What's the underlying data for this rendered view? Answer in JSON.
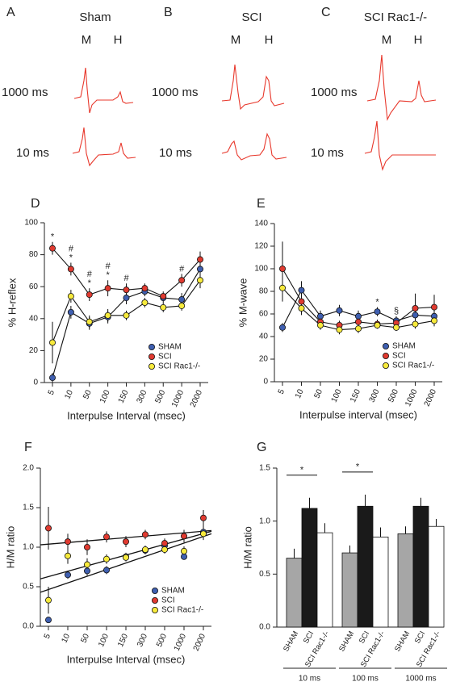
{
  "traces": {
    "panels": [
      {
        "letter": "A",
        "title": "Sham",
        "m": "M",
        "h": "H",
        "row_labels": [
          "1000 ms",
          "10 ms"
        ]
      },
      {
        "letter": "B",
        "title": "SCI",
        "m": "M",
        "h": "H",
        "row_labels": [
          "1000 ms",
          "10 ms"
        ]
      },
      {
        "letter": "C",
        "title": "SCI Rac1-/-",
        "m": "M",
        "h": "H",
        "row_labels": [
          "1000 ms",
          "10 ms"
        ]
      }
    ]
  },
  "chart_data": [
    {
      "type": "line",
      "panel_label": "D",
      "xlabel": "Interpulse Interval (msec)",
      "ylabel": "% H-reflex",
      "categories": [
        "5",
        "10",
        "50",
        "100",
        "150",
        "300",
        "500",
        "1000",
        "2000"
      ],
      "ylim": [
        0,
        100
      ],
      "yticks": [
        0,
        20,
        40,
        60,
        80,
        100
      ],
      "legend": "lower right",
      "series": [
        {
          "name": "SHAM",
          "color": "#3f5fb0",
          "values": [
            3,
            44,
            37,
            41,
            53,
            57,
            53,
            52,
            71
          ],
          "errors": [
            3,
            4,
            4,
            4,
            4,
            3,
            3,
            4,
            5
          ]
        },
        {
          "name": "SCI",
          "color": "#e03a30",
          "values": [
            84,
            71,
            55,
            59,
            58,
            59,
            54,
            64,
            77
          ],
          "errors": [
            4,
            4,
            4,
            5,
            4,
            3,
            3,
            4,
            5
          ]
        },
        {
          "name": "SCI Rac1-/-",
          "color": "#f7ea3c",
          "values": [
            25,
            54,
            38,
            42,
            42,
            50,
            47,
            48,
            64
          ],
          "errors": [
            13,
            4,
            4,
            4,
            3,
            3,
            3,
            3,
            5
          ]
        }
      ],
      "annotations": [
        {
          "x": "5",
          "text": "*"
        },
        {
          "x": "10",
          "text": "*"
        },
        {
          "x": "10",
          "text": "#"
        },
        {
          "x": "50",
          "text": "*"
        },
        {
          "x": "50",
          "text": "#"
        },
        {
          "x": "100",
          "text": "*"
        },
        {
          "x": "100",
          "text": "#"
        },
        {
          "x": "150",
          "text": "#"
        },
        {
          "x": "1000",
          "text": "#"
        }
      ]
    },
    {
      "type": "line",
      "panel_label": "E",
      "xlabel": "Interpulse interval (msec)",
      "ylabel": "% M-wave",
      "categories": [
        "5",
        "10",
        "50",
        "100",
        "150",
        "300",
        "500",
        "1000",
        "2000"
      ],
      "ylim": [
        0,
        140
      ],
      "yticks": [
        0,
        20,
        40,
        60,
        80,
        100,
        120,
        140
      ],
      "legend": "lower right",
      "series": [
        {
          "name": "SHAM",
          "color": "#3f5fb0",
          "values": [
            48,
            81,
            58,
            63,
            58,
            62,
            54,
            59,
            58
          ],
          "errors": [
            4,
            8,
            5,
            5,
            5,
            4,
            4,
            8,
            8
          ]
        },
        {
          "name": "SCI",
          "color": "#e03a30",
          "values": [
            100,
            71,
            53,
            50,
            53,
            51,
            52,
            65,
            66
          ],
          "errors": [
            24,
            8,
            5,
            4,
            5,
            4,
            4,
            13,
            11
          ]
        },
        {
          "name": "SCI Rac1-/-",
          "color": "#f7ea3c",
          "values": [
            83,
            65,
            50,
            46,
            47,
            50,
            48,
            51,
            54
          ],
          "errors": [
            12,
            6,
            4,
            4,
            4,
            3,
            3,
            4,
            5
          ]
        }
      ],
      "annotations": [
        {
          "x": "300",
          "text": "*"
        },
        {
          "x": "500",
          "text": "§"
        }
      ]
    },
    {
      "type": "scatter",
      "panel_label": "F",
      "xlabel": "Interpulse Interval (msec)",
      "ylabel": "H/M ratio",
      "categories": [
        "5",
        "10",
        "50",
        "100",
        "150",
        "300",
        "500",
        "1000",
        "2000"
      ],
      "ylim": [
        0,
        2
      ],
      "yticks": [
        {
          "value": 0,
          "label": "0.0"
        },
        {
          "value": 0.5,
          "label": "0.5"
        },
        {
          "value": 1,
          "label": "1.0"
        },
        {
          "value": 1.5,
          "label": "1.5"
        },
        {
          "value": 2,
          "label": "2.0"
        }
      ],
      "legend": "lower right",
      "series": [
        {
          "name": "SHAM",
          "color": "#3f5fb0",
          "values": [
            0.08,
            0.65,
            0.7,
            0.71,
            0.88,
            0.96,
            1.02,
            0.88,
            1.19
          ],
          "errors": [
            0.03,
            0.05,
            0.06,
            0.05,
            0.05,
            0.05,
            0.04,
            0.04,
            0.1
          ]
        },
        {
          "name": "SCI",
          "color": "#e03a30",
          "values": [
            1.24,
            1.07,
            1.0,
            1.13,
            1.07,
            1.16,
            1.05,
            1.14,
            1.37
          ],
          "errors": [
            0.27,
            0.1,
            0.1,
            0.07,
            0.07,
            0.06,
            0.06,
            0.08,
            0.1
          ]
        },
        {
          "name": "SCI Rac1-/-",
          "color": "#f7ea3c",
          "values": [
            0.33,
            0.89,
            0.78,
            0.85,
            0.87,
            0.97,
            0.97,
            0.95,
            1.17
          ],
          "errors": [
            0.17,
            0.1,
            0.08,
            0.06,
            0.05,
            0.05,
            0.05,
            0.06,
            0.07
          ]
        }
      ],
      "fit_lines": [
        {
          "y_start": 1.03,
          "y_end": 1.21
        },
        {
          "y_start": 0.6,
          "y_end": 1.2
        },
        {
          "y_start": 0.43,
          "y_end": 1.17
        }
      ]
    },
    {
      "type": "bar",
      "panel_label": "G",
      "ylabel": "H/M ratio",
      "categories": [
        "10 ms",
        "100 ms",
        "1000 ms"
      ],
      "ylim": [
        0,
        1.5
      ],
      "yticks": [
        {
          "value": 0,
          "label": "0.0"
        },
        {
          "value": 0.5,
          "label": "0.5"
        },
        {
          "value": 1,
          "label": "1.0"
        },
        {
          "value": 1.5,
          "label": "1.5"
        }
      ],
      "series": [
        {
          "name": "SHAM",
          "color": "#a6a6a6",
          "values": [
            0.65,
            0.7,
            0.88
          ],
          "errors": [
            0.09,
            0.07,
            0.07
          ]
        },
        {
          "name": "SCI",
          "color": "#1a1a1a",
          "values": [
            1.12,
            1.14,
            1.14
          ],
          "errors": [
            0.1,
            0.11,
            0.08
          ]
        },
        {
          "name": "SCI Rac1-/-",
          "color": "#ffffff",
          "values": [
            0.89,
            0.85,
            0.95
          ],
          "errors": [
            0.09,
            0.09,
            0.07
          ]
        }
      ],
      "annotations": [
        {
          "x": "10 ms",
          "text": "*"
        },
        {
          "x": "100 ms",
          "text": "*"
        }
      ]
    }
  ]
}
